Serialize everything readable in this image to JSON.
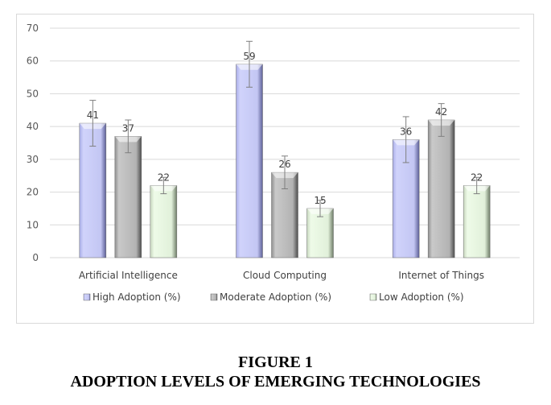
{
  "chart_data": {
    "type": "bar",
    "title": "",
    "xlabel": "",
    "ylabel": "",
    "ylim": [
      0,
      70
    ],
    "yticks": [
      0,
      10,
      20,
      30,
      40,
      50,
      60,
      70
    ],
    "grid": true,
    "legend_position": "bottom",
    "categories": [
      "Artificial Intelligence",
      "Cloud Computing",
      "Internet of Things"
    ],
    "series": [
      {
        "name": "High Adoption (%)",
        "color": "#c5c8f5",
        "values": [
          41,
          59,
          36
        ],
        "error": [
          7,
          7,
          7
        ]
      },
      {
        "name": "Moderate Adoption (%)",
        "color": "#b8b8b8",
        "values": [
          37,
          26,
          42
        ],
        "error": [
          5,
          5,
          5
        ]
      },
      {
        "name": "Low Adoption (%)",
        "color": "#e6f5df",
        "values": [
          22,
          15,
          22
        ],
        "error": [
          2.5,
          2.5,
          2.5
        ]
      }
    ],
    "data_labels": true
  },
  "caption": {
    "line1": "FIGURE 1",
    "line2": "ADOPTION LEVELS OF EMERGING TECHNOLOGIES"
  }
}
